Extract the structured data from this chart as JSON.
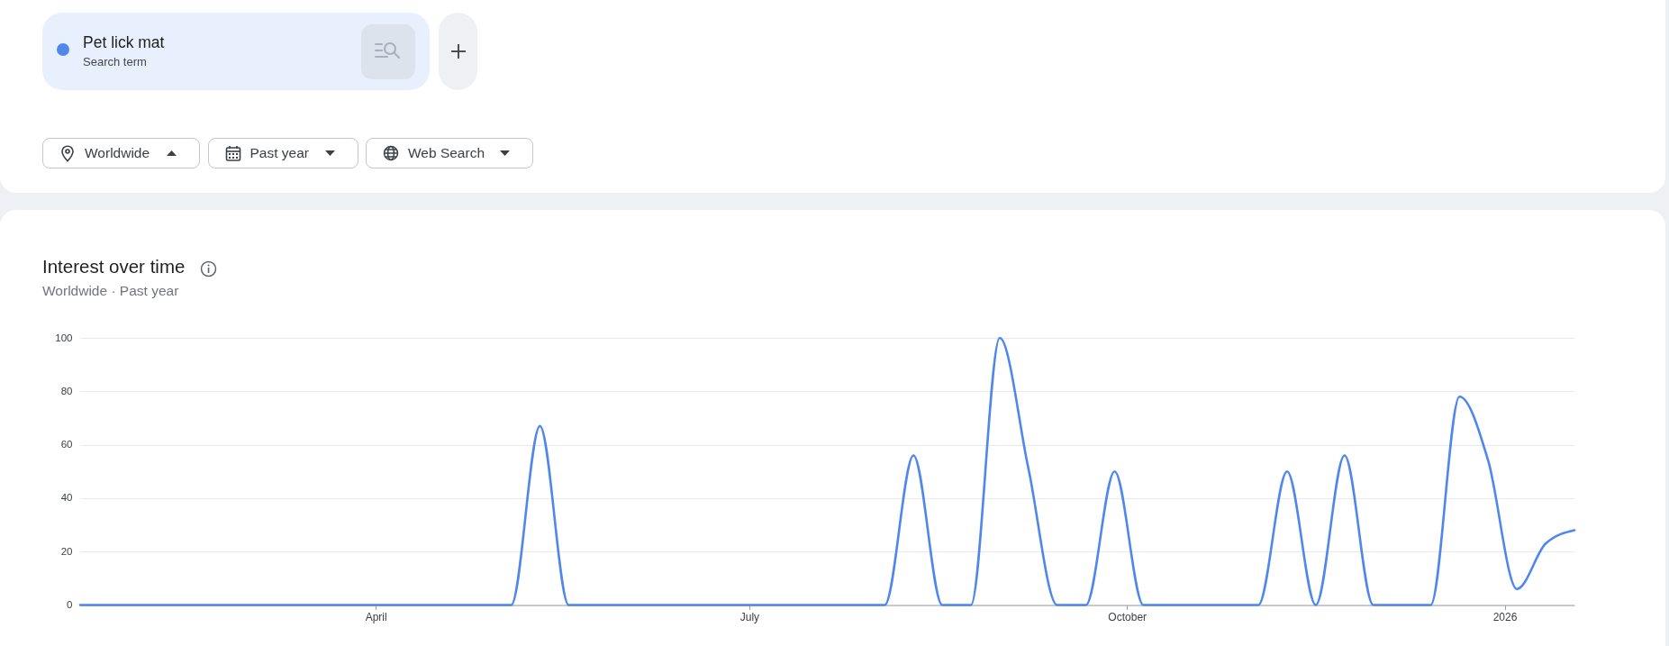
{
  "chart_data": {
    "type": "line",
    "title": "Interest over time",
    "subtitle": "Worldwide · Past year",
    "annotations": [
      "Search term",
      "Worldwide",
      "Past year",
      "Web Search"
    ],
    "x": [
      "2025-01-19",
      "2025-01-26",
      "2025-02-02",
      "2025-02-09",
      "2025-02-16",
      "2025-02-23",
      "2025-03-02",
      "2025-03-09",
      "2025-03-16",
      "2025-03-23",
      "2025-03-30",
      "2025-04-06",
      "2025-04-13",
      "2025-04-20",
      "2025-04-27",
      "2025-05-04",
      "2025-05-11",
      "2025-05-18",
      "2025-05-25",
      "2025-06-01",
      "2025-06-08",
      "2025-06-15",
      "2025-06-22",
      "2025-06-29",
      "2025-07-06",
      "2025-07-13",
      "2025-07-20",
      "2025-07-27",
      "2025-08-03",
      "2025-08-10",
      "2025-08-17",
      "2025-08-24",
      "2025-08-31",
      "2025-09-07",
      "2025-09-14",
      "2025-09-21",
      "2025-09-28",
      "2025-10-05",
      "2025-10-12",
      "2025-10-19",
      "2025-10-26",
      "2025-11-02",
      "2025-11-09",
      "2025-11-16",
      "2025-11-23",
      "2025-11-30",
      "2025-12-07",
      "2025-12-14",
      "2025-12-21",
      "2025-12-28",
      "2026-01-04",
      "2026-01-11",
      "2026-01-18"
    ],
    "series": [
      {
        "name": "Pet lick mat",
        "color": "#5087ec",
        "values": [
          0,
          0,
          0,
          0,
          0,
          0,
          0,
          0,
          0,
          0,
          0,
          0,
          0,
          0,
          0,
          0,
          67,
          0,
          0,
          0,
          0,
          0,
          0,
          0,
          0,
          0,
          0,
          0,
          0,
          56,
          0,
          0,
          100,
          51,
          0,
          0,
          50,
          0,
          0,
          0,
          0,
          0,
          50,
          0,
          56,
          0,
          0,
          0,
          78,
          54,
          6,
          23,
          28
        ]
      }
    ],
    "xlim": [
      "2025-01-19",
      "2026-01-18"
    ],
    "xticks": [
      {
        "value": "2025-04-01",
        "label": "April"
      },
      {
        "value": "2025-07-01",
        "label": "July"
      },
      {
        "value": "2025-10-01",
        "label": "October"
      },
      {
        "value": "2026-01-01",
        "label": "2026"
      }
    ],
    "ylim": [
      0,
      100
    ],
    "yticks": [
      0,
      20,
      40,
      60,
      80,
      100
    ],
    "grid": "y",
    "legend": "top left"
  }
}
